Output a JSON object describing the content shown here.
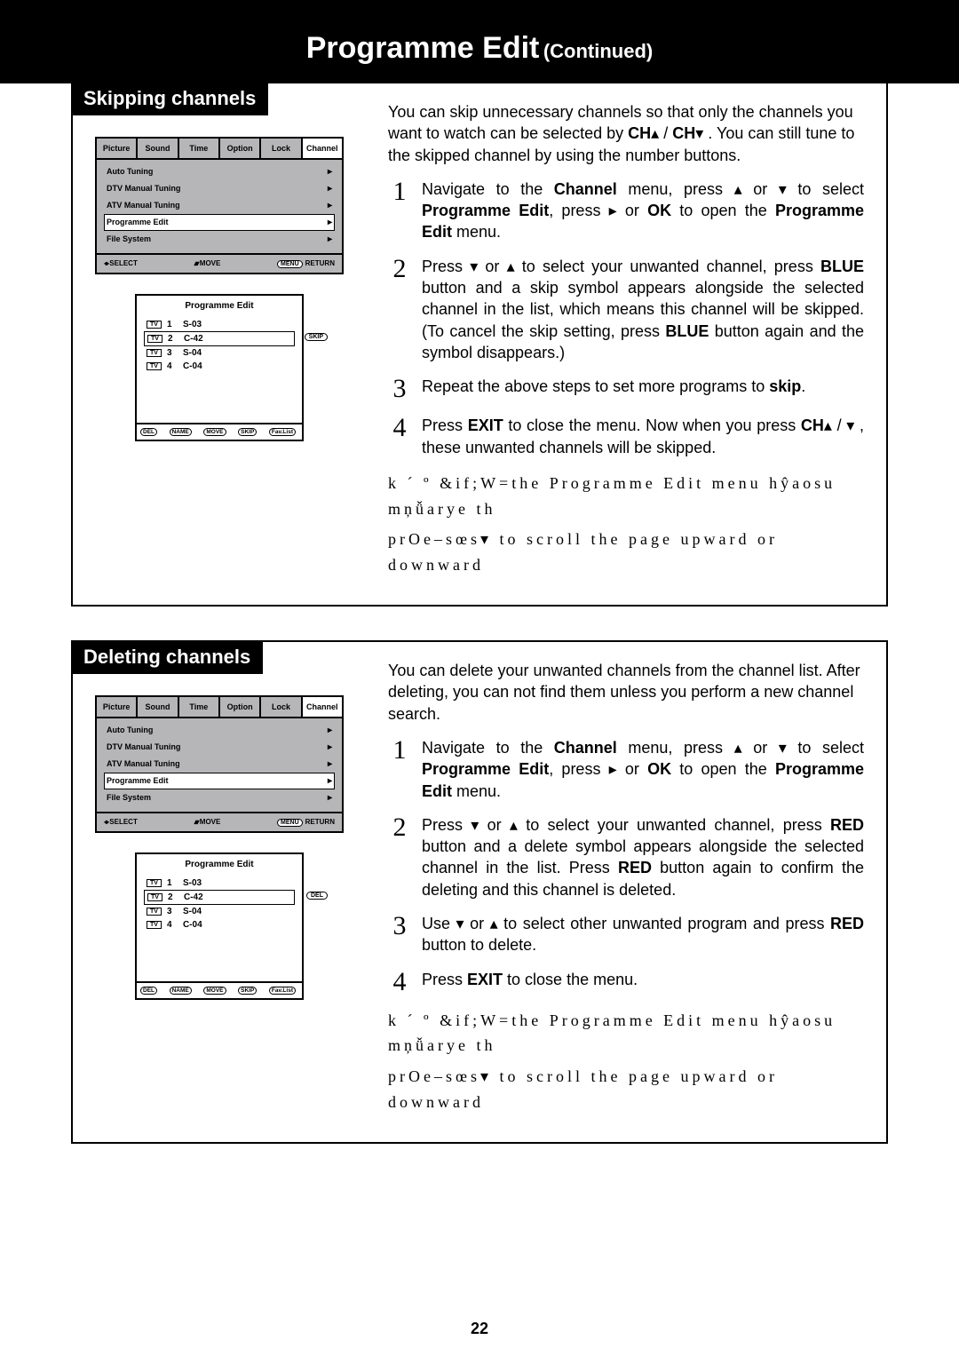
{
  "title": {
    "main": "Programme Edit",
    "sub": "(Continued)"
  },
  "page_number": "22",
  "osd": {
    "tabs": [
      "Picture",
      "Sound",
      "Time",
      "Option",
      "Lock",
      "Channel"
    ],
    "items": [
      {
        "label": "Auto Tuning",
        "selected": false
      },
      {
        "label": "DTV Manual Tuning",
        "selected": false
      },
      {
        "label": "ATV Manual Tuning",
        "selected": false
      },
      {
        "label": "Programme Edit",
        "selected": true
      },
      {
        "label": "File System",
        "selected": false
      }
    ],
    "footer": {
      "select": "SELECT",
      "move": "MOVE",
      "menu": "MENU",
      "return": "RETURN"
    }
  },
  "channel_list": {
    "title": "Programme Edit",
    "rows": [
      {
        "num": "1",
        "name": "S-03"
      },
      {
        "num": "2",
        "name": "C-42",
        "selected": true
      },
      {
        "num": "3",
        "name": "S-04"
      },
      {
        "num": "4",
        "name": "C-04"
      }
    ],
    "footer_buttons": [
      "DEL",
      "NAME",
      "MOVE",
      "SKIP",
      "Fav.List"
    ]
  },
  "skip": {
    "label": "Skipping channels",
    "tag": "SKIP",
    "intro_parts": [
      "You can skip unnecessary channels so that only the channels you want to watch can be selected by ",
      "CH",
      " / ",
      "CH",
      " . You can still tune to the skipped channel by using the number buttons."
    ],
    "steps": [
      {
        "n": "1",
        "parts": [
          "Navigate to the ",
          "Channel",
          " menu,   press ",
          "",
          " or ",
          "",
          " to select ",
          "Programme Edit",
          ", press  ",
          "",
          "  or ",
          "OK",
          " to open the ",
          "Programme Edit",
          " menu."
        ]
      },
      {
        "n": "2",
        "parts": [
          "Press  ",
          "",
          " or ",
          "",
          "  to select your unwanted channel, press ",
          "BLUE",
          " button and a skip symbol appears alongside the selected channel in the list, which means this channel will be skipped. (To cancel the skip setting, press ",
          "BLUE",
          " button again and the symbol disappears.)"
        ]
      },
      {
        "n": "3",
        "parts": [
          "Repeat the above steps to set more programs to ",
          "skip",
          "."
        ]
      },
      {
        "n": "4",
        "parts": [
          "Press ",
          "EXIT",
          " to close the menu. Now when you press ",
          "CH",
          " / ",
          "",
          " , these unwanted channels will be skipped."
        ]
      }
    ],
    "note_a": "k ´ º &if;W=the  Programme  Edit  menu  hŷaosu  mņǚarye  th",
    "note_b": "prOe–sœs▾  to scroll the page upward or downward"
  },
  "delete": {
    "label": "Deleting channels",
    "tag": "DEL",
    "intro": "You can delete your unwanted channels from the channel list. After deleting, you can not find them unless you perform a new channel search.",
    "steps": [
      {
        "n": "1",
        "parts": [
          "Navigate to the ",
          "Channel",
          " menu,   press ",
          "",
          " or ",
          "",
          " to select ",
          "Programme Edit",
          ", press  ",
          "",
          "  or ",
          "OK",
          " to open the ",
          "Programme Edit",
          " menu."
        ]
      },
      {
        "n": "2",
        "parts": [
          "Press  ",
          "",
          " or ",
          "",
          "  to select your unwanted channel, press ",
          "RED",
          " button and a delete symbol appears alongside the selected channel in the list. Press ",
          "RED",
          " button again to confirm the deleting and this channel is deleted."
        ]
      },
      {
        "n": "3",
        "parts": [
          "Use  ",
          "",
          " or ",
          "",
          "  to select other unwanted program and press ",
          "RED",
          " button to delete."
        ]
      },
      {
        "n": "4",
        "parts": [
          "Press ",
          "EXIT",
          " to close the menu."
        ]
      }
    ],
    "note_a": "k ´ º &if;W=the  Programme  Edit  menu  hŷaosu  mņǚarye  th",
    "note_b": "prOe–sœs▾  to scroll the page upward or downward"
  }
}
